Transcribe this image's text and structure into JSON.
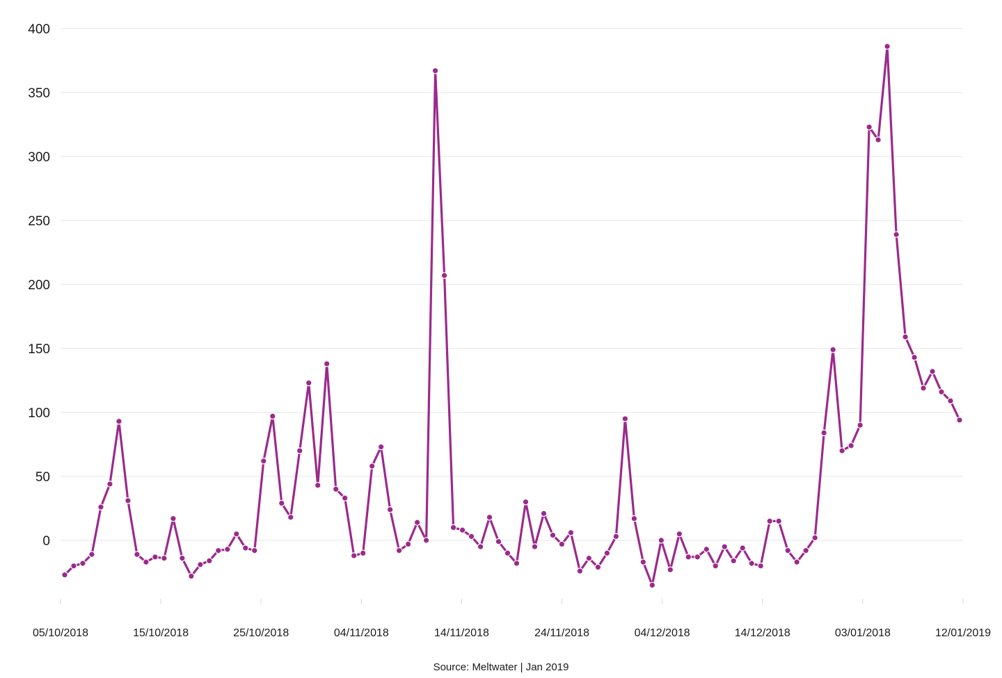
{
  "chart_data": {
    "type": "line",
    "source": "Source: Meltwater | Jan 2019",
    "ylim": [
      -50,
      400
    ],
    "y_ticks": [
      0,
      50,
      100,
      150,
      200,
      250,
      300,
      350,
      400
    ],
    "x_tick_labels": [
      "05/10/2018",
      "15/10/2018",
      "25/10/2018",
      "04/11/2018",
      "14/11/2018",
      "24/11/2018",
      "04/12/2018",
      "14/12/2018",
      "03/01/2018",
      "12/01/2019"
    ],
    "grid": "horizontal",
    "legend": "none",
    "series": [
      {
        "color": "#9b2a8c",
        "values": [
          -27,
          -20,
          -18,
          -11,
          26,
          44,
          93,
          31,
          -11,
          -17,
          -13,
          -14,
          17,
          -14,
          -28,
          -19,
          -16,
          -8,
          -7,
          5,
          -6,
          -8,
          62,
          97,
          29,
          18,
          70,
          123,
          43,
          138,
          40,
          33,
          -12,
          -10,
          58,
          73,
          24,
          -8,
          -3,
          14,
          0,
          367,
          207,
          10,
          8,
          3,
          -5,
          18,
          -1,
          -10,
          -18,
          30,
          -5,
          21,
          4,
          -3,
          6,
          -24,
          -14,
          -21,
          -10,
          3,
          95,
          17,
          -17,
          -35,
          0,
          -23,
          5,
          -13,
          -13,
          -7,
          -20,
          -5,
          -16,
          -6,
          -18,
          -20,
          15,
          15,
          -8,
          -17,
          -8,
          2,
          84,
          149,
          70,
          74,
          90,
          323,
          313,
          386,
          239,
          159,
          143,
          119,
          132,
          116,
          109,
          94
        ]
      }
    ]
  }
}
